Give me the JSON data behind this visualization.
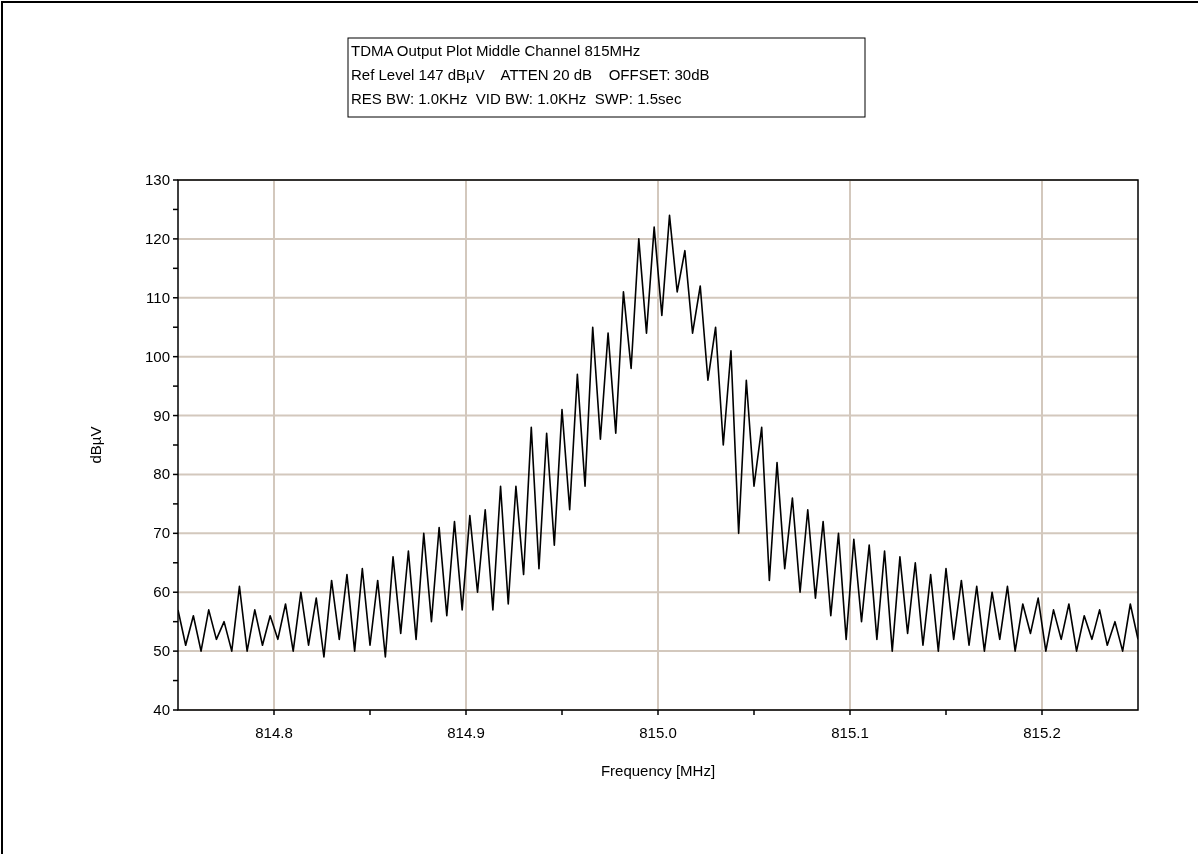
{
  "chart_data": {
    "type": "line",
    "title": "TDMA Output Plot Middle Channel 815MHz",
    "subtitle": "Ref Level 147 dBµV    ATTEN 20 dB    OFFSET: 30dB",
    "annotations": [
      "RES BW: 1.0KHz  VID BW: 1.0KHz  SWP: 1.5sec"
    ],
    "xlabel": "Frequency [MHz]",
    "ylabel": "dBµV",
    "xlim": [
      814.75,
      815.25
    ],
    "xticks": [
      {
        "value": 814.8,
        "label": "814.8"
      },
      {
        "value": 814.85,
        "label": null
      },
      {
        "value": 814.9,
        "label": "814.9"
      },
      {
        "value": 814.95,
        "label": null
      },
      {
        "value": 815.0,
        "label": "815.0"
      },
      {
        "value": 815.05,
        "label": null
      },
      {
        "value": 815.1,
        "label": "815.1"
      },
      {
        "value": 815.15,
        "label": null
      },
      {
        "value": 815.2,
        "label": "815.2"
      }
    ],
    "ylim": [
      40,
      130
    ],
    "yticks": [
      40,
      {
        "value": 45,
        "label": null
      },
      50,
      {
        "value": 55,
        "label": null
      },
      60,
      {
        "value": 65,
        "label": null
      },
      70,
      {
        "value": 75,
        "label": null
      },
      80,
      {
        "value": 85,
        "label": null
      },
      90,
      {
        "value": 95,
        "label": null
      },
      100,
      {
        "value": 105,
        "label": null
      },
      110,
      {
        "value": 115,
        "label": null
      },
      120,
      {
        "value": 125,
        "label": null
      },
      130
    ],
    "grid": true,
    "series": [
      {
        "color": "#000000",
        "x": [
          814.75,
          814.754,
          814.758,
          814.762,
          814.766,
          814.77,
          814.774,
          814.778,
          814.782,
          814.786,
          814.79,
          814.794,
          814.798,
          814.802,
          814.806,
          814.81,
          814.814,
          814.818,
          814.822,
          814.826,
          814.83,
          814.834,
          814.838,
          814.842,
          814.846,
          814.85,
          814.854,
          814.858,
          814.862,
          814.866,
          814.87,
          814.874,
          814.878,
          814.882,
          814.886,
          814.89,
          814.894,
          814.898,
          814.902,
          814.906,
          814.91,
          814.914,
          814.918,
          814.922,
          814.926,
          814.93,
          814.934,
          814.938,
          814.942,
          814.946,
          814.95,
          814.954,
          814.958,
          814.962,
          814.966,
          814.97,
          814.974,
          814.978,
          814.982,
          814.986,
          814.99,
          814.994,
          814.998,
          815.002,
          815.006,
          815.01,
          815.014,
          815.018,
          815.022,
          815.026,
          815.03,
          815.034,
          815.038,
          815.042,
          815.046,
          815.05,
          815.054,
          815.058,
          815.062,
          815.066,
          815.07,
          815.074,
          815.078,
          815.082,
          815.086,
          815.09,
          815.094,
          815.098,
          815.102,
          815.106,
          815.11,
          815.114,
          815.118,
          815.122,
          815.126,
          815.13,
          815.134,
          815.138,
          815.142,
          815.146,
          815.15,
          815.154,
          815.158,
          815.162,
          815.166,
          815.17,
          815.174,
          815.178,
          815.182,
          815.186,
          815.19,
          815.194,
          815.198,
          815.202,
          815.206,
          815.21,
          815.214,
          815.218,
          815.222,
          815.226,
          815.23,
          815.234,
          815.238,
          815.242,
          815.246,
          815.25
        ],
        "values": [
          57,
          51,
          56,
          50,
          57,
          52,
          55,
          50,
          61,
          50,
          57,
          51,
          56,
          52,
          58,
          50,
          60,
          51,
          59,
          49,
          62,
          52,
          63,
          50,
          64,
          51,
          62,
          49,
          66,
          53,
          67,
          52,
          70,
          55,
          71,
          56,
          72,
          57,
          73,
          60,
          74,
          57,
          78,
          58,
          78,
          63,
          88,
          64,
          87,
          68,
          91,
          74,
          97,
          78,
          105,
          86,
          104,
          87,
          111,
          98,
          120,
          104,
          122,
          107,
          124,
          111,
          118,
          104,
          112,
          96,
          105,
          85,
          101,
          70,
          96,
          78,
          88,
          62,
          82,
          64,
          76,
          60,
          74,
          59,
          72,
          56,
          70,
          52,
          69,
          55,
          68,
          52,
          67,
          50,
          66,
          53,
          65,
          51,
          63,
          50,
          64,
          52,
          62,
          51,
          61,
          50,
          60,
          52,
          61,
          50,
          58,
          53,
          59,
          50,
          57,
          52,
          58,
          50,
          56,
          52,
          57,
          51,
          55,
          50,
          58,
          52
        ]
      }
    ]
  }
}
